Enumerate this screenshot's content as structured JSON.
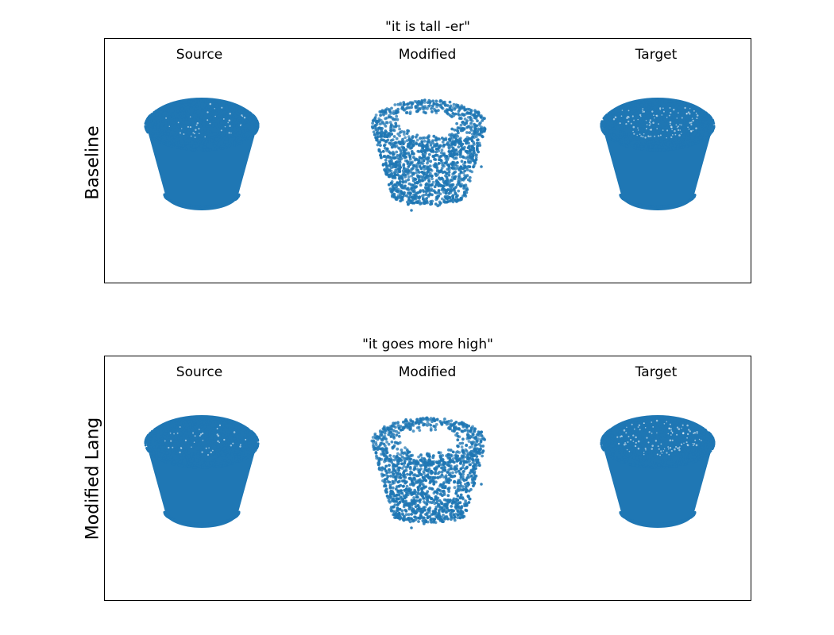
{
  "colors": {
    "points": "#1f77b4",
    "frame": "#000000",
    "background": "#ffffff"
  },
  "panels": [
    {
      "title": "\"it is tall -er\"",
      "row_label": "Baseline",
      "columns": [
        {
          "label": "Source",
          "kind": "dense",
          "icon": "point-cloud-cup"
        },
        {
          "label": "Modified",
          "kind": "sparse",
          "icon": "point-cloud-cup"
        },
        {
          "label": "Target",
          "kind": "dense-hollow",
          "icon": "point-cloud-cup"
        }
      ]
    },
    {
      "title": "\"it goes more high\"",
      "row_label": "Modified Lang",
      "columns": [
        {
          "label": "Source",
          "kind": "dense",
          "icon": "point-cloud-cup"
        },
        {
          "label": "Modified",
          "kind": "sparse",
          "icon": "point-cloud-cup"
        },
        {
          "label": "Target",
          "kind": "dense-hollow",
          "icon": "point-cloud-cup"
        }
      ]
    }
  ]
}
